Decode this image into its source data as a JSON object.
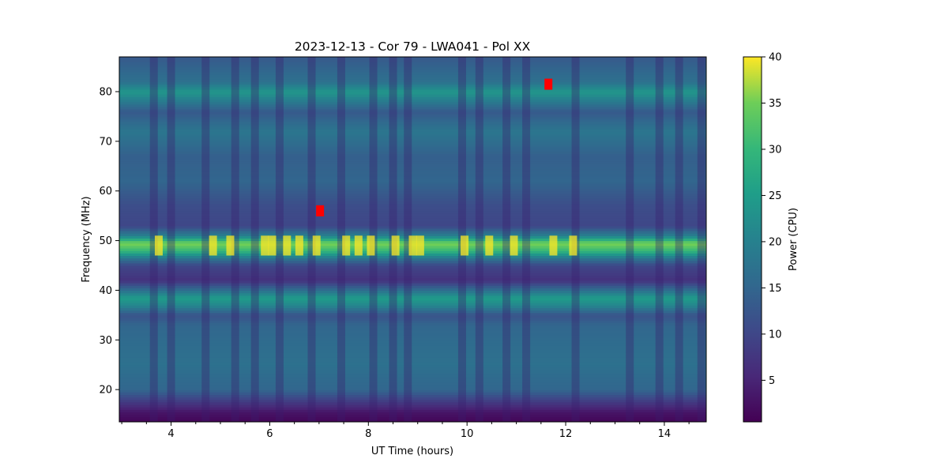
{
  "chart_data": {
    "type": "heatmap",
    "title": "2023-12-13 - Cor 79 - LWA041 - Pol XX",
    "xlabel": "UT Time (hours)",
    "ylabel": "Frequency (MHz)",
    "colorbar_label": "Power (CPU)",
    "xlim": [
      2.95,
      14.85
    ],
    "ylim": [
      13.5,
      87.0
    ],
    "clim": [
      0.5,
      40
    ],
    "colormap": "viridis",
    "xticks": [
      4,
      6,
      8,
      10,
      12,
      14
    ],
    "yticks": [
      20,
      30,
      40,
      50,
      60,
      70,
      80
    ],
    "cticks": [
      5,
      10,
      15,
      20,
      25,
      30,
      35,
      40
    ],
    "grid": false,
    "spectrum_profile": [
      {
        "freq": 13.5,
        "power": 1
      },
      {
        "freq": 15.5,
        "power": 3
      },
      {
        "freq": 17.5,
        "power": 8
      },
      {
        "freq": 20,
        "power": 15
      },
      {
        "freq": 25,
        "power": 17
      },
      {
        "freq": 30,
        "power": 16
      },
      {
        "freq": 33,
        "power": 15
      },
      {
        "freq": 35,
        "power": 12
      },
      {
        "freq": 37,
        "power": 21
      },
      {
        "freq": 38.5,
        "power": 25
      },
      {
        "freq": 40,
        "power": 17
      },
      {
        "freq": 42,
        "power": 7
      },
      {
        "freq": 45,
        "power": 10
      },
      {
        "freq": 46.5,
        "power": 18
      },
      {
        "freq": 48,
        "power": 30
      },
      {
        "freq": 49.5,
        "power": 36
      },
      {
        "freq": 51,
        "power": 20
      },
      {
        "freq": 53,
        "power": 10
      },
      {
        "freq": 57,
        "power": 11
      },
      {
        "freq": 62,
        "power": 15
      },
      {
        "freq": 67,
        "power": 14
      },
      {
        "freq": 72,
        "power": 18
      },
      {
        "freq": 76,
        "power": 13
      },
      {
        "freq": 78.5,
        "power": 20
      },
      {
        "freq": 80,
        "power": 24
      },
      {
        "freq": 82,
        "power": 17
      },
      {
        "freq": 84.5,
        "power": 15
      },
      {
        "freq": 87,
        "power": 13
      }
    ],
    "bright_columns_hours": [
      3.75,
      4.85,
      5.2,
      5.9,
      6.05,
      6.35,
      6.6,
      6.95,
      7.55,
      7.8,
      8.05,
      8.55,
      8.9,
      9.05,
      9.95,
      10.45,
      10.95,
      11.75,
      12.15
    ],
    "dark_columns_hours": [
      3.65,
      4.0,
      4.7,
      5.3,
      5.7,
      6.2,
      6.85,
      7.45,
      8.1,
      8.5,
      8.8,
      9.9,
      10.25,
      10.8,
      11.2,
      12.2,
      13.3,
      13.9,
      14.3,
      14.75
    ],
    "flagged_markers": [
      {
        "time": 7.02,
        "freq": 56.0
      },
      {
        "time": 11.65,
        "freq": 81.5
      }
    ]
  }
}
